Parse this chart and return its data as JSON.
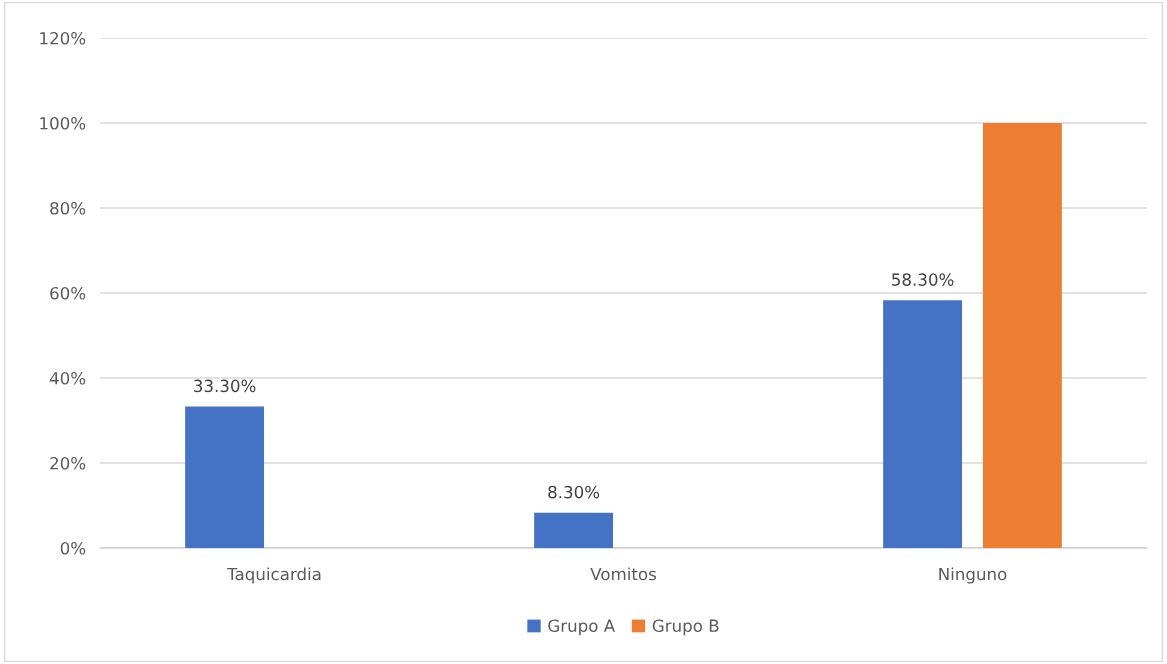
{
  "chart_data": {
    "type": "bar",
    "categories": [
      "Taquicardia",
      "Vomitos",
      "Ninguno"
    ],
    "series": [
      {
        "name": "Grupo A",
        "color": "#4472c4",
        "values": [
          33.3,
          8.3,
          58.3
        ],
        "value_labels": [
          "33.30%",
          "8.30%",
          "58.30%"
        ]
      },
      {
        "name": "Grupo B",
        "color": "#ed7d31",
        "values": [
          0,
          0,
          100
        ]
      }
    ],
    "ylim": [
      0,
      120
    ],
    "yticks": [
      {
        "value": 0,
        "label": "0%"
      },
      {
        "value": 20,
        "label": "20%"
      },
      {
        "value": 40,
        "label": "40%"
      },
      {
        "value": 60,
        "label": "60%"
      },
      {
        "value": 80,
        "label": "80%"
      },
      {
        "value": 100,
        "label": "100%"
      },
      {
        "value": 120,
        "label": "120%"
      }
    ],
    "grid": "y",
    "legend": "bottom"
  }
}
